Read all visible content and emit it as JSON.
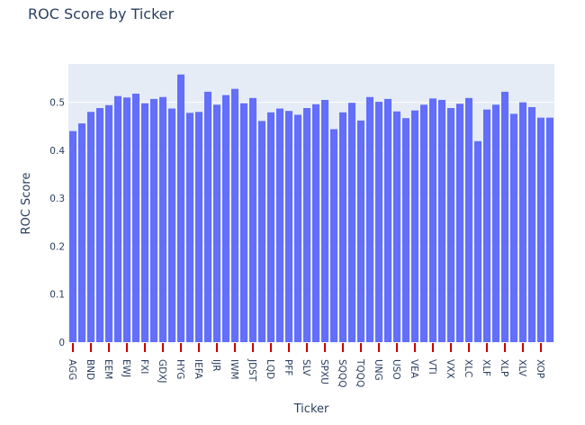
{
  "chart_data": {
    "type": "bar",
    "title": "ROC Score by Ticker",
    "xlabel": "Ticker",
    "ylabel": "ROC Score",
    "ylim": [
      0,
      0.58
    ],
    "yticks": [
      0,
      0.1,
      0.2,
      0.3,
      0.4,
      0.5
    ],
    "ytick_labels": [
      "0",
      "0.1",
      "0.2",
      "0.3",
      "0.4",
      "0.5"
    ],
    "grid": true,
    "legend": "none",
    "colors": {
      "bar": "#636efa",
      "plot_bg": "#e5ecf6",
      "grid": "#ffffff",
      "text": "#2a3f5f",
      "tick_marks": "#cc0000"
    },
    "labeled_tickers": [
      "AGG",
      "BND",
      "EEM",
      "EWJ",
      "FXI",
      "GDXJ",
      "HYG",
      "IEFA",
      "IJR",
      "IWM",
      "JDST",
      "LQD",
      "PFF",
      "SLV",
      "SPXU",
      "SQQQ",
      "TQQQ",
      "UNG",
      "USO",
      "VEA",
      "VTI",
      "VXX",
      "XLC",
      "XLF",
      "XLP",
      "XLV",
      "XOP"
    ],
    "values": [
      0.44,
      0.456,
      0.48,
      0.488,
      0.494,
      0.513,
      0.51,
      0.518,
      0.498,
      0.507,
      0.511,
      0.487,
      0.558,
      0.478,
      0.48,
      0.522,
      0.495,
      0.515,
      0.528,
      0.498,
      0.509,
      0.461,
      0.479,
      0.487,
      0.482,
      0.474,
      0.488,
      0.496,
      0.505,
      0.444,
      0.479,
      0.499,
      0.462,
      0.511,
      0.501,
      0.507,
      0.481,
      0.467,
      0.483,
      0.495,
      0.508,
      0.505,
      0.488,
      0.497,
      0.509,
      0.419,
      0.485,
      0.495,
      0.522,
      0.476,
      0.5,
      0.49,
      0.468,
      0.468
    ]
  }
}
